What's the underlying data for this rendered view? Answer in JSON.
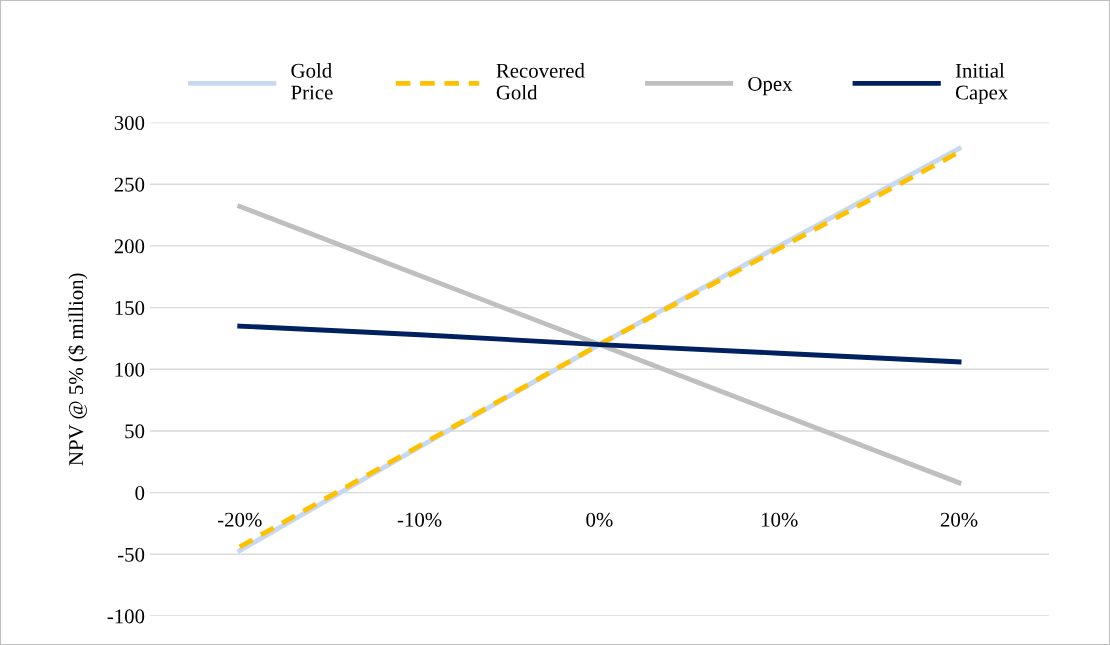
{
  "chart_data": {
    "type": "line",
    "ylabel": "NPV @ 5% ($ million)",
    "categories": [
      "-20%",
      "-10%",
      "0%",
      "10%",
      "20%"
    ],
    "series": [
      {
        "name": "Gold\nPrice",
        "color": "#c6d9f1",
        "line_style": "solid",
        "values": [
          -47,
          37,
          120,
          200,
          279
        ]
      },
      {
        "name": "Recovered\nGold",
        "color": "#ffc000",
        "line_style": "dashed",
        "values": [
          -44,
          38,
          120,
          198,
          276
        ]
      },
      {
        "name": "Opex",
        "color": "#bfbfbf",
        "line_style": "solid",
        "values": [
          232,
          176,
          120,
          64,
          8
        ]
      },
      {
        "name": "Initial\nCapex",
        "color": "#002060",
        "line_style": "solid",
        "values": [
          135,
          128,
          120,
          113,
          106
        ]
      }
    ],
    "ylim": [
      -100,
      300
    ],
    "yticks": [
      -100,
      -50,
      0,
      50,
      100,
      150,
      200,
      250,
      300
    ],
    "grid": "y",
    "legend": "top",
    "marker": "none"
  }
}
